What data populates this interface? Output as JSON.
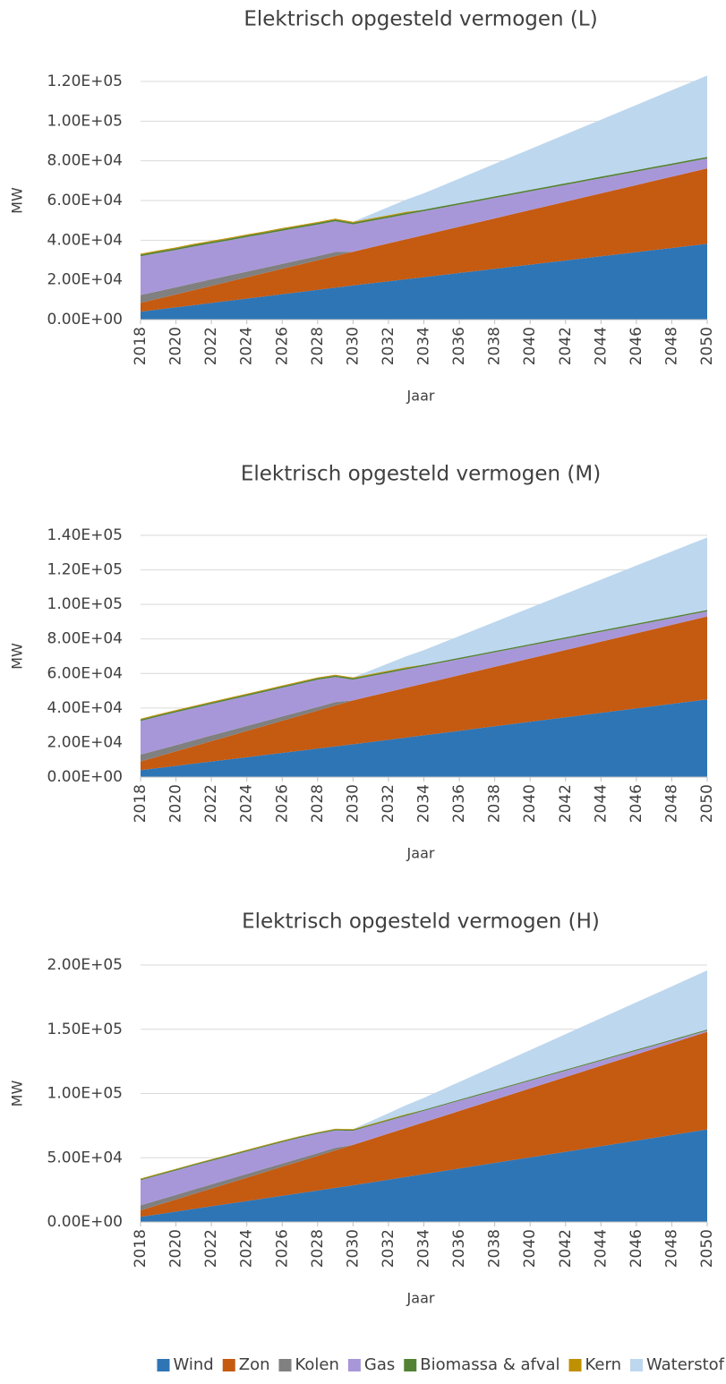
{
  "chart_data": [
    {
      "type": "stacked_area",
      "title": "Elektrisch opgesteld vermogen (L)",
      "xlabel": "Jaar",
      "ylabel": "MW",
      "grid": true,
      "legend": "bottom",
      "x": [
        2018,
        2019,
        2020,
        2021,
        2022,
        2023,
        2024,
        2025,
        2026,
        2027,
        2028,
        2029,
        2030,
        2031,
        2032,
        2033,
        2034,
        2035,
        2036,
        2037,
        2038,
        2039,
        2040,
        2041,
        2042,
        2043,
        2044,
        2045,
        2046,
        2047,
        2048,
        2049,
        2050
      ],
      "xlim": [
        2018,
        2050
      ],
      "xticks": [
        2018,
        2020,
        2022,
        2024,
        2026,
        2028,
        2030,
        2032,
        2034,
        2036,
        2038,
        2040,
        2042,
        2044,
        2046,
        2048,
        2050
      ],
      "ylim": [
        0,
        120000
      ],
      "yticks": [
        {
          "value": 0,
          "label": "0.00E+00"
        },
        {
          "value": 20000,
          "label": "2.00E+04"
        },
        {
          "value": 40000,
          "label": "4.00E+04"
        },
        {
          "value": 60000,
          "label": "6.00E+04"
        },
        {
          "value": 80000,
          "label": "8.00E+04"
        },
        {
          "value": 100000,
          "label": "1.00E+05"
        },
        {
          "value": 120000,
          "label": "1.20E+05"
        }
      ],
      "series": [
        {
          "name": "Wind",
          "color": "#2e75b6",
          "values": [
            4000,
            5100,
            6200,
            7300,
            8400,
            9500,
            10600,
            11700,
            12800,
            13900,
            15000,
            16100,
            17200,
            18250,
            19300,
            20350,
            21400,
            22450,
            23500,
            24550,
            25600,
            26650,
            27700,
            28750,
            29800,
            30850,
            31900,
            32950,
            34000,
            35050,
            36100,
            37150,
            38200
          ]
        },
        {
          "name": "Zon",
          "color": "#c55a11",
          "values": [
            4400,
            5450,
            6500,
            7550,
            8600,
            9650,
            10700,
            11750,
            12800,
            13850,
            14900,
            15950,
            17000,
            18050,
            19100,
            20150,
            21200,
            22250,
            23300,
            24350,
            25400,
            26450,
            27500,
            28550,
            29600,
            30650,
            31700,
            32750,
            33800,
            34850,
            35900,
            36950,
            38000
          ]
        },
        {
          "name": "Kolen",
          "color": "#808080",
          "values": [
            4000,
            3800,
            3600,
            3500,
            3300,
            3100,
            2900,
            2700,
            2500,
            2300,
            2100,
            2000,
            0,
            0,
            0,
            0,
            0,
            0,
            0,
            0,
            0,
            0,
            0,
            0,
            0,
            0,
            0,
            0,
            0,
            0,
            0,
            0,
            0
          ]
        },
        {
          "name": "Gas",
          "color": "#a897d8",
          "values": [
            19500,
            19200,
            18800,
            18500,
            18100,
            17700,
            17400,
            17000,
            16700,
            16300,
            15900,
            15500,
            13800,
            13360,
            12920,
            12480,
            12040,
            11600,
            11160,
            10720,
            10280,
            9840,
            9400,
            8960,
            8520,
            8080,
            7640,
            7200,
            6760,
            6320,
            5880,
            5440,
            5000
          ]
        },
        {
          "name": "Biomassa & afval",
          "color": "#548235",
          "values": [
            800,
            800,
            800,
            800,
            800,
            800,
            800,
            800,
            800,
            800,
            800,
            800,
            800,
            800,
            800,
            800,
            800,
            800,
            800,
            800,
            800,
            800,
            800,
            800,
            800,
            800,
            800,
            800,
            800,
            800,
            800,
            800,
            800
          ]
        },
        {
          "name": "Kern",
          "color": "#bf9000",
          "values": [
            500,
            500,
            500,
            500,
            500,
            500,
            500,
            500,
            500,
            500,
            500,
            500,
            500,
            500,
            500,
            500,
            0,
            0,
            0,
            0,
            0,
            0,
            0,
            0,
            0,
            0,
            0,
            0,
            0,
            0,
            0,
            0,
            0
          ]
        },
        {
          "name": "Waterstof",
          "color": "#bdd7ee",
          "values": [
            0,
            0,
            0,
            0,
            0,
            0,
            0,
            0,
            0,
            0,
            0,
            0,
            0,
            2050,
            4100,
            6150,
            8200,
            10250,
            12300,
            14350,
            16400,
            18450,
            20500,
            22550,
            24600,
            26650,
            28700,
            30750,
            32800,
            34850,
            36900,
            38950,
            41000
          ]
        }
      ]
    },
    {
      "type": "stacked_area",
      "title": "Elektrisch opgesteld vermogen (M)",
      "xlabel": "Jaar",
      "ylabel": "MW",
      "grid": true,
      "legend": "bottom",
      "x": [
        2018,
        2019,
        2020,
        2021,
        2022,
        2023,
        2024,
        2025,
        2026,
        2027,
        2028,
        2029,
        2030,
        2031,
        2032,
        2033,
        2034,
        2035,
        2036,
        2037,
        2038,
        2039,
        2040,
        2041,
        2042,
        2043,
        2044,
        2045,
        2046,
        2047,
        2048,
        2049,
        2050
      ],
      "xlim": [
        2018,
        2050
      ],
      "xticks": [
        2018,
        2020,
        2022,
        2024,
        2026,
        2028,
        2030,
        2032,
        2034,
        2036,
        2038,
        2040,
        2042,
        2044,
        2046,
        2048,
        2050
      ],
      "ylim": [
        0,
        140000
      ],
      "yticks": [
        {
          "value": 0,
          "label": "0.00E+00"
        },
        {
          "value": 20000,
          "label": "2.00E+04"
        },
        {
          "value": 40000,
          "label": "4.00E+04"
        },
        {
          "value": 60000,
          "label": "6.00E+04"
        },
        {
          "value": 80000,
          "label": "8.00E+04"
        },
        {
          "value": 100000,
          "label": "1.00E+05"
        },
        {
          "value": 120000,
          "label": "1.20E+05"
        },
        {
          "value": 140000,
          "label": "1.40E+05"
        }
      ],
      "series": [
        {
          "name": "Wind",
          "color": "#2e75b6",
          "values": [
            4000,
            5250,
            6500,
            7750,
            9000,
            10250,
            11500,
            12750,
            14000,
            15250,
            16500,
            17750,
            19000,
            20300,
            21600,
            22900,
            24200,
            25500,
            26800,
            28100,
            29400,
            30700,
            32000,
            33300,
            34600,
            35900,
            37200,
            38500,
            39800,
            41100,
            42400,
            43700,
            45000
          ]
        },
        {
          "name": "Zon",
          "color": "#c55a11",
          "values": [
            5000,
            6700,
            8400,
            10100,
            11800,
            13500,
            15200,
            16900,
            18600,
            20300,
            22000,
            23700,
            25400,
            26530,
            27660,
            28790,
            29920,
            31050,
            32180,
            33310,
            34440,
            35570,
            36700,
            37830,
            38960,
            40090,
            41220,
            42350,
            43480,
            44610,
            45740,
            46870,
            48000
          ]
        },
        {
          "name": "Kolen",
          "color": "#808080",
          "values": [
            4000,
            3800,
            3600,
            3500,
            3300,
            3100,
            2900,
            2700,
            2500,
            2300,
            2100,
            2000,
            0,
            0,
            0,
            0,
            0,
            0,
            0,
            0,
            0,
            0,
            0,
            0,
            0,
            0,
            0,
            0,
            0,
            0,
            0,
            0,
            0
          ]
        },
        {
          "name": "Gas",
          "color": "#a897d8",
          "values": [
            19500,
            19300,
            19000,
            18600,
            18200,
            17800,
            17400,
            17000,
            16600,
            16200,
            15800,
            14500,
            12000,
            11550,
            11100,
            10650,
            10200,
            9750,
            9300,
            8850,
            8400,
            7950,
            7500,
            7050,
            6600,
            6150,
            5700,
            5250,
            4800,
            4350,
            3900,
            3450,
            3000
          ]
        },
        {
          "name": "Biomassa & afval",
          "color": "#548235",
          "values": [
            800,
            800,
            800,
            800,
            800,
            800,
            800,
            800,
            800,
            800,
            800,
            800,
            800,
            800,
            800,
            800,
            800,
            800,
            800,
            800,
            800,
            800,
            800,
            800,
            800,
            800,
            800,
            800,
            800,
            800,
            800,
            800,
            800
          ]
        },
        {
          "name": "Kern",
          "color": "#bf9000",
          "values": [
            500,
            500,
            500,
            500,
            500,
            500,
            500,
            500,
            500,
            500,
            500,
            500,
            500,
            500,
            500,
            500,
            0,
            0,
            0,
            0,
            0,
            0,
            0,
            0,
            0,
            0,
            0,
            0,
            0,
            0,
            0,
            0,
            0
          ]
        },
        {
          "name": "Waterstof",
          "color": "#bdd7ee",
          "values": [
            0,
            0,
            0,
            0,
            0,
            0,
            0,
            0,
            0,
            0,
            0,
            0,
            0,
            2100,
            4200,
            6300,
            8400,
            10500,
            12600,
            14700,
            16800,
            18900,
            21000,
            23100,
            25200,
            27300,
            29400,
            31500,
            33600,
            35700,
            37800,
            39900,
            42000
          ]
        }
      ]
    },
    {
      "type": "stacked_area",
      "title": "Elektrisch opgesteld vermogen (H)",
      "xlabel": "Jaar",
      "ylabel": "MW",
      "grid": true,
      "legend": "bottom",
      "x": [
        2018,
        2019,
        2020,
        2021,
        2022,
        2023,
        2024,
        2025,
        2026,
        2027,
        2028,
        2029,
        2030,
        2031,
        2032,
        2033,
        2034,
        2035,
        2036,
        2037,
        2038,
        2039,
        2040,
        2041,
        2042,
        2043,
        2044,
        2045,
        2046,
        2047,
        2048,
        2049,
        2050
      ],
      "xlim": [
        2018,
        2050
      ],
      "xticks": [
        2018,
        2020,
        2022,
        2024,
        2026,
        2028,
        2030,
        2032,
        2034,
        2036,
        2038,
        2040,
        2042,
        2044,
        2046,
        2048,
        2050
      ],
      "ylim": [
        0,
        200000
      ],
      "yticks": [
        {
          "value": 0,
          "label": "0.00E+00"
        },
        {
          "value": 50000,
          "label": "5.00E+04"
        },
        {
          "value": 100000,
          "label": "1.00E+05"
        },
        {
          "value": 150000,
          "label": "1.50E+05"
        },
        {
          "value": 200000,
          "label": "2.00E+05"
        }
      ],
      "series": [
        {
          "name": "Wind",
          "color": "#2e75b6",
          "values": [
            4000,
            6050,
            8100,
            10150,
            12200,
            14250,
            16300,
            18350,
            20400,
            22450,
            24500,
            26550,
            28600,
            30770,
            32940,
            35110,
            37280,
            39450,
            41620,
            43790,
            45960,
            48130,
            50300,
            52470,
            54640,
            56810,
            58980,
            61150,
            63320,
            65490,
            67660,
            69830,
            72000
          ]
        },
        {
          "name": "Zon",
          "color": "#c55a11",
          "values": [
            5000,
            7200,
            9400,
            11600,
            13800,
            16000,
            18200,
            20400,
            22600,
            24800,
            27000,
            29200,
            31400,
            33630,
            35860,
            38090,
            40320,
            42550,
            44780,
            47010,
            49240,
            51470,
            53700,
            55930,
            58160,
            60390,
            62620,
            64850,
            67080,
            69310,
            71540,
            73770,
            76000
          ]
        },
        {
          "name": "Kolen",
          "color": "#808080",
          "values": [
            4000,
            3800,
            3600,
            3500,
            3300,
            3100,
            2900,
            2700,
            2500,
            2300,
            2100,
            2000,
            0,
            0,
            0,
            0,
            0,
            0,
            0,
            0,
            0,
            0,
            0,
            0,
            0,
            0,
            0,
            0,
            0,
            0,
            0,
            0,
            0
          ]
        },
        {
          "name": "Gas",
          "color": "#a897d8",
          "values": [
            19500,
            19300,
            19000,
            18700,
            18300,
            17900,
            17500,
            17100,
            16600,
            16000,
            15000,
            13500,
            11000,
            10500,
            10000,
            9500,
            9000,
            8500,
            8000,
            7500,
            7000,
            6500,
            6000,
            5500,
            5000,
            4500,
            4000,
            3500,
            3000,
            2500,
            2000,
            1500,
            1000
          ]
        },
        {
          "name": "Biomassa & afval",
          "color": "#548235",
          "values": [
            800,
            800,
            800,
            800,
            800,
            800,
            800,
            800,
            800,
            800,
            800,
            800,
            800,
            800,
            800,
            800,
            800,
            800,
            800,
            800,
            800,
            800,
            800,
            800,
            800,
            800,
            800,
            800,
            800,
            800,
            800,
            800,
            800
          ]
        },
        {
          "name": "Kern",
          "color": "#bf9000",
          "values": [
            500,
            500,
            500,
            500,
            500,
            500,
            500,
            500,
            500,
            500,
            500,
            500,
            500,
            500,
            500,
            500,
            0,
            0,
            0,
            0,
            0,
            0,
            0,
            0,
            0,
            0,
            0,
            0,
            0,
            0,
            0,
            0,
            0
          ]
        },
        {
          "name": "Waterstof",
          "color": "#bdd7ee",
          "values": [
            0,
            0,
            0,
            0,
            0,
            0,
            0,
            0,
            0,
            0,
            0,
            0,
            0,
            2300,
            4600,
            6900,
            9200,
            11500,
            13800,
            16100,
            18400,
            20700,
            23000,
            25300,
            27600,
            29900,
            32200,
            34500,
            36800,
            39100,
            41400,
            43700,
            46000
          ]
        }
      ]
    }
  ]
}
